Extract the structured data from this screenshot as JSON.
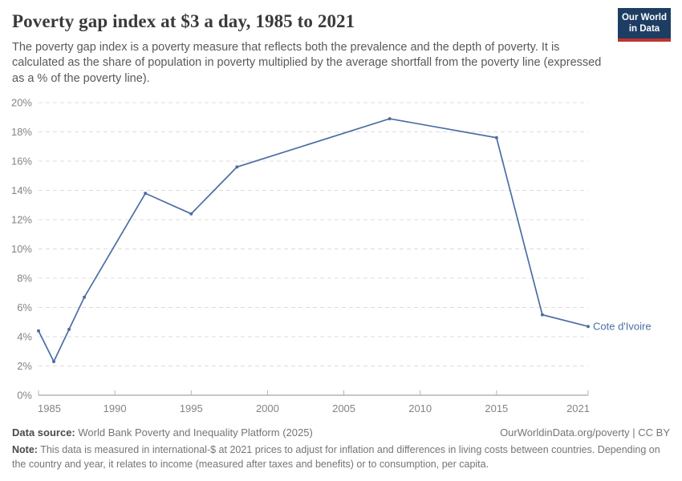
{
  "header": {
    "title": "Poverty gap index at $3 a day, 1985 to 2021",
    "subtitle": "The poverty gap index is a poverty measure that reflects both the prevalence and the depth of poverty. It is calculated as the share of population in poverty multiplied by the average shortfall from the poverty line (expressed as a % of the poverty line).",
    "logo_line1": "Our World",
    "logo_line2": "in Data",
    "logo_bg_color": "#1d3d63",
    "logo_accent_color": "#bb3530"
  },
  "chart_data": {
    "type": "line",
    "title": "Poverty gap index at $3 a day, 1985 to 2021",
    "xlabel": "",
    "ylabel": "",
    "xlim": [
      1985,
      2021
    ],
    "ylim": [
      0,
      20
    ],
    "grid": "dashed-horizontal",
    "legend_position": "end-of-line",
    "x_ticks": [
      1985,
      1990,
      1995,
      2000,
      2005,
      2010,
      2015,
      2021
    ],
    "x_tick_labels": [
      "1985",
      "1990",
      "1995",
      "2000",
      "2005",
      "2010",
      "2015",
      "2021"
    ],
    "y_ticks": [
      0,
      2,
      4,
      6,
      8,
      10,
      12,
      14,
      16,
      18,
      20
    ],
    "y_tick_format": "{v}%",
    "end_label": "Cote d'Ivoire",
    "series": [
      {
        "name": "Cote d'Ivoire",
        "x": [
          1985,
          1986,
          1987,
          1988,
          1992,
          1995,
          1998,
          2008,
          2015,
          2018,
          2021
        ],
        "values": [
          4.4,
          2.3,
          4.5,
          6.7,
          13.8,
          12.4,
          15.6,
          18.9,
          17.6,
          5.5,
          4.7
        ],
        "color": "#4c6ea4"
      }
    ],
    "style": {
      "grid_color": "#dcdcdc",
      "axis_color": "#b3b3b3",
      "tick_color": "#848484"
    }
  },
  "footer": {
    "data_source_label": "Data source:",
    "data_source_value": "World Bank Poverty and Inequality Platform (2025)",
    "attribution": "OurWorldinData.org/poverty | CC BY",
    "note_label": "Note:",
    "note_value": "This data is measured in international-$ at 2021 prices to adjust for inflation and differences in living costs between countries. Depending on the country and year, it relates to income (measured after taxes and benefits) or to consumption, per capita."
  }
}
